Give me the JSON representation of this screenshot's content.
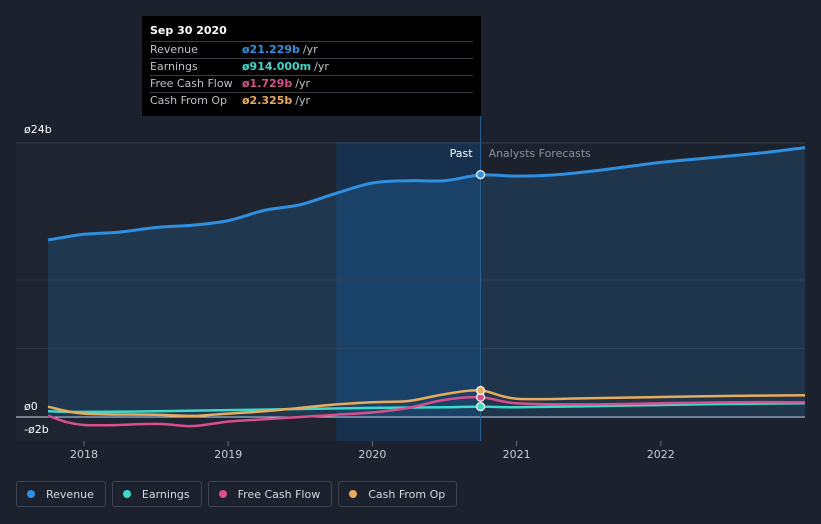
{
  "chart_data": {
    "type": "line",
    "y_axis": {
      "labels": [
        "ø24b",
        "ø0",
        "-ø2b"
      ],
      "values": [
        24,
        0,
        -2
      ],
      "ylim": [
        -2.5,
        24
      ]
    },
    "x_axis": {
      "tick_labels": [
        "2018",
        "2019",
        "2020",
        "2021",
        "2022"
      ],
      "tick_values": [
        2018,
        2019,
        2020,
        2021,
        2022
      ],
      "xlim": [
        2017.5,
        2023.0
      ]
    },
    "past_label": "Past",
    "forecast_label": "Analysts Forecasts",
    "divider_x": 2020.75,
    "highlight_start_x": 2019.75,
    "legend_placement": "bottom-left",
    "series": [
      {
        "name": "Revenue",
        "key": "revenue",
        "color": "#2f8fe0",
        "x": [
          2017.75,
          2018.0,
          2018.25,
          2018.5,
          2018.75,
          2019.0,
          2019.25,
          2019.5,
          2019.75,
          2020.0,
          2020.25,
          2020.5,
          2020.75,
          2021.0,
          2021.25,
          2021.5,
          2021.75,
          2022.0,
          2022.25,
          2022.5,
          2022.75,
          2023.0
        ],
        "y": [
          15.5,
          16.0,
          16.2,
          16.6,
          16.8,
          17.2,
          18.1,
          18.6,
          19.6,
          20.5,
          20.7,
          20.7,
          21.2,
          21.1,
          21.2,
          21.5,
          21.9,
          22.3,
          22.6,
          22.9,
          23.2,
          23.6
        ]
      },
      {
        "name": "Earnings",
        "key": "earnings",
        "color": "#3fd9c9",
        "x": [
          2017.75,
          2018.0,
          2018.5,
          2019.0,
          2019.5,
          2020.0,
          2020.5,
          2020.75,
          2021.0,
          2021.5,
          2022.0,
          2022.5,
          2023.0
        ],
        "y": [
          0.5,
          0.45,
          0.5,
          0.6,
          0.7,
          0.8,
          0.85,
          0.914,
          0.85,
          0.95,
          1.05,
          1.15,
          1.2
        ]
      },
      {
        "name": "Free Cash Flow",
        "key": "fcf",
        "color": "#d94f8e",
        "x": [
          2017.75,
          2018.0,
          2018.5,
          2018.75,
          2019.0,
          2019.25,
          2019.5,
          2019.75,
          2020.0,
          2020.25,
          2020.5,
          2020.75,
          2021.0,
          2021.5,
          2022.0,
          2022.5,
          2023.0
        ],
        "y": [
          0.1,
          -0.7,
          -0.6,
          -0.8,
          -0.4,
          -0.2,
          0.0,
          0.2,
          0.4,
          0.8,
          1.5,
          1.729,
          1.2,
          1.1,
          1.2,
          1.3,
          1.3
        ]
      },
      {
        "name": "Cash From Op",
        "key": "cfo",
        "color": "#e8ab5c",
        "x": [
          2017.75,
          2018.0,
          2018.5,
          2018.75,
          2019.0,
          2019.25,
          2019.5,
          2019.75,
          2020.0,
          2020.25,
          2020.5,
          2020.75,
          2021.0,
          2021.5,
          2022.0,
          2022.5,
          2023.0
        ],
        "y": [
          0.9,
          0.3,
          0.2,
          0.1,
          0.3,
          0.5,
          0.8,
          1.1,
          1.3,
          1.4,
          2.0,
          2.325,
          1.6,
          1.65,
          1.75,
          1.85,
          1.9
        ]
      }
    ],
    "highlight_point": {
      "x": 2020.75,
      "date": "Sep 30 2020",
      "values": {
        "revenue": 21.229,
        "earnings": 0.914,
        "fcf": 1.729,
        "cfo": 2.325
      }
    }
  },
  "tooltip": {
    "title": "Sep 30 2020",
    "rows": [
      {
        "label": "Revenue",
        "value": "ø21.229b",
        "unit": "/yr",
        "color": "#2f8fe0"
      },
      {
        "label": "Earnings",
        "value": "ø914.000m",
        "unit": "/yr",
        "color": "#3fd9c9"
      },
      {
        "label": "Free Cash Flow",
        "value": "ø1.729b",
        "unit": "/yr",
        "color": "#d94f8e"
      },
      {
        "label": "Cash From Op",
        "value": "ø2.325b",
        "unit": "/yr",
        "color": "#e8ab5c"
      }
    ]
  },
  "legend": [
    {
      "label": "Revenue",
      "color": "#2f8fe0"
    },
    {
      "label": "Earnings",
      "color": "#3fd9c9"
    },
    {
      "label": "Free Cash Flow",
      "color": "#d94f8e"
    },
    {
      "label": "Cash From Op",
      "color": "#e8ab5c"
    }
  ]
}
